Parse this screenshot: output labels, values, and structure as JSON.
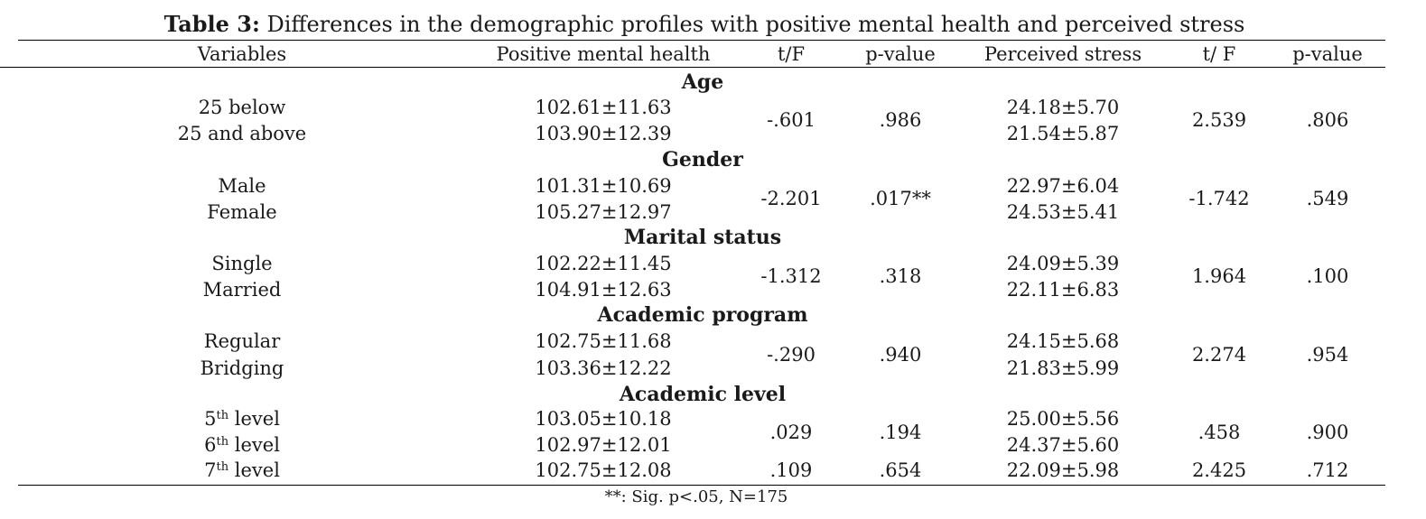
{
  "caption": {
    "label": "Table 3:",
    "text": " Differences in the demographic profiles with positive mental health and perceived stress"
  },
  "headers": [
    "Variables",
    "Positive mental health",
    "t/F",
    "p-value",
    "Perceived stress",
    "t/ F",
    "p-value"
  ],
  "groups": [
    {
      "name": "Age",
      "categories": [
        {
          "label": "25 below",
          "sup": "",
          "suffix": "",
          "pmh": "102.61±11.63",
          "ps": "24.18±5.70"
        },
        {
          "label": "25 and above",
          "sup": "",
          "suffix": "",
          "pmh": "103.90±12.39",
          "ps": "21.54±5.87"
        }
      ],
      "stats": [
        {
          "t_pmh": "-.601",
          "p_pmh": ".986",
          "t_ps": "2.539",
          "p_ps": ".806"
        }
      ]
    },
    {
      "name": "Gender",
      "categories": [
        {
          "label": "Male",
          "sup": "",
          "suffix": "",
          "pmh": "101.31±10.69",
          "ps": "22.97±6.04"
        },
        {
          "label": "Female",
          "sup": "",
          "suffix": "",
          "pmh": "105.27±12.97",
          "ps": "24.53±5.41"
        }
      ],
      "stats": [
        {
          "t_pmh": "-2.201",
          "p_pmh": ".017**",
          "t_ps": "-1.742",
          "p_ps": ".549"
        }
      ]
    },
    {
      "name": "Marital status",
      "categories": [
        {
          "label": "Single",
          "sup": "",
          "suffix": "",
          "pmh": "102.22±11.45",
          "ps": "24.09±5.39"
        },
        {
          "label": "Married",
          "sup": "",
          "suffix": "",
          "pmh": "104.91±12.63",
          "ps": "22.11±6.83"
        }
      ],
      "stats": [
        {
          "t_pmh": "-1.312",
          "p_pmh": ".318",
          "t_ps": "1.964",
          "p_ps": ".100"
        }
      ]
    },
    {
      "name": "Academic program",
      "categories": [
        {
          "label": "Regular",
          "sup": "",
          "suffix": "",
          "pmh": "102.75±11.68",
          "ps": "24.15±5.68"
        },
        {
          "label": "Bridging",
          "sup": "",
          "suffix": "",
          "pmh": "103.36±12.22",
          "ps": "21.83±5.99"
        }
      ],
      "stats": [
        {
          "t_pmh": "-.290",
          "p_pmh": ".940",
          "t_ps": "2.274",
          "p_ps": ".954"
        }
      ]
    },
    {
      "name": "Academic level",
      "categories": [
        {
          "label": "5",
          "sup": "th",
          "suffix": " level",
          "pmh": "103.05±10.18",
          "ps": "25.00±5.56"
        },
        {
          "label": "6",
          "sup": "th",
          "suffix": " level",
          "pmh": "102.97±12.01",
          "ps": "24.37±5.60"
        },
        {
          "label": "7",
          "sup": "th",
          "suffix": " level",
          "pmh": "102.75±12.08",
          "ps": "22.09±5.98"
        }
      ],
      "stats": [
        {
          "t_pmh": ".029",
          "p_pmh": ".194",
          "t_ps": ".458",
          "p_ps": ".900"
        },
        {
          "t_pmh": ".109",
          "p_pmh": ".654",
          "t_ps": "2.425",
          "p_ps": ".712"
        }
      ]
    }
  ],
  "footnote": "**: Sig. p<.05, N=175"
}
